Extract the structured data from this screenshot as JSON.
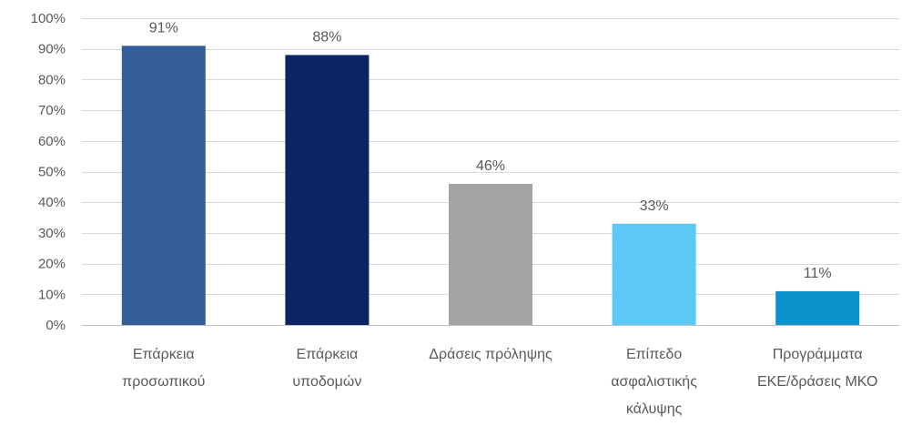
{
  "chart_data": {
    "type": "bar",
    "categories": [
      [
        "Επάρκεια",
        "προσωπικού"
      ],
      [
        "Επάρκεια",
        "υποδομών"
      ],
      [
        "Δράσεις πρόληψης"
      ],
      [
        "Επίπεδο",
        "ασφαλιστικής",
        "κάλυψης"
      ],
      [
        "Προγράμματα",
        "ΕΚΕ/δράσεις ΜΚΟ"
      ]
    ],
    "values": [
      91,
      88,
      46,
      33,
      11
    ],
    "data_labels": [
      "91%",
      "88%",
      "46%",
      "33%",
      "11%"
    ],
    "colors": [
      "#335E97",
      "#0B2463",
      "#A3A3A3",
      "#5CC8F6",
      "#0A93CC"
    ],
    "ylim": [
      0,
      100
    ],
    "yticks": [
      0,
      10,
      20,
      30,
      40,
      50,
      60,
      70,
      80,
      90,
      100
    ],
    "ytick_labels": [
      "0%",
      "10%",
      "20%",
      "30%",
      "40%",
      "50%",
      "60%",
      "70%",
      "80%",
      "90%",
      "100%"
    ],
    "grid": true,
    "title": "",
    "xlabel": "",
    "ylabel": ""
  }
}
